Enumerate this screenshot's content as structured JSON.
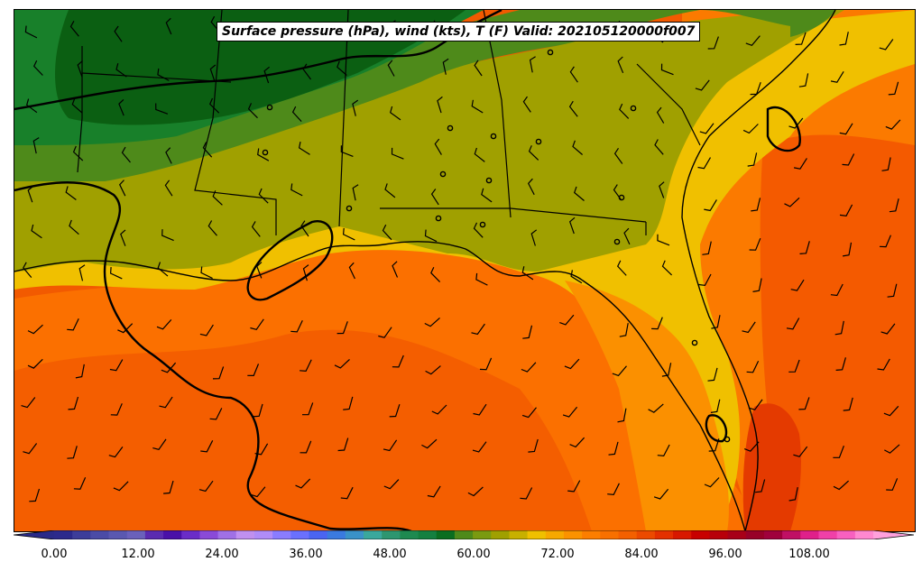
{
  "title": "Surface pressure (hPa), wind (kts), T (F) Valid: 202105120000f007",
  "colorbar": {
    "tick_labels": [
      "0.00",
      "12.00",
      "24.00",
      "36.00",
      "48.00",
      "60.00",
      "72.00",
      "84.00",
      "96.00",
      "108.00"
    ],
    "colors": [
      "#2c2a8c",
      "#3d3d9a",
      "#4b4ba6",
      "#5a58b0",
      "#6a61bb",
      "#5b2bb0",
      "#4a10a8",
      "#6a2cc8",
      "#8a4ad8",
      "#a070e6",
      "#c090f0",
      "#b08cf8",
      "#8a7cff",
      "#6a70ff",
      "#4a64f2",
      "#3a7ae0",
      "#3a92c8",
      "#3aa89c",
      "#2e9670",
      "#1e8a50",
      "#148040",
      "#0a6e20",
      "#4e8a1a",
      "#7a9a10",
      "#a0a000",
      "#c8b000",
      "#f0c000",
      "#f7a800",
      "#fb9200",
      "#fc7e00",
      "#f87000",
      "#f46000",
      "#ec4a00",
      "#e43000",
      "#d81800",
      "#c80000",
      "#b8000a",
      "#a80018",
      "#980028",
      "#a0003c",
      "#c01064",
      "#e0208a",
      "#f040a8",
      "#f860c0",
      "#ff88d0"
    ],
    "extend_low_color": "#2a2a88",
    "extend_high_color": "#ffa0dc"
  },
  "legend_colors": {
    "land_dark_green": "#0b5f12",
    "land_green": "#18802a",
    "land_olive": "#4e8a1a",
    "land_olive_yellow": "#a0a000",
    "land_yellow": "#f0c000",
    "orange": "#fb8c00",
    "dark_orange": "#f46000",
    "red_orange": "#e43000",
    "contour": "#000000"
  }
}
